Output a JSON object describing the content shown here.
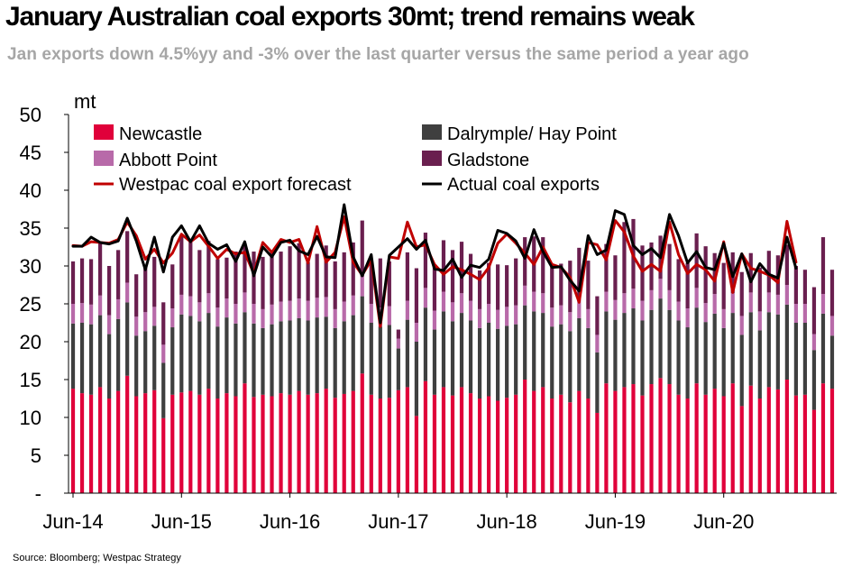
{
  "header": {
    "title": "January Australian coal exports 30mt; trend remains weak",
    "subtitle": "Jan exports down 4.5%yy and -3% over the last quarter versus the same period a year ago"
  },
  "footer": {
    "source": "Source: Bloomberg; Westpac Strategy"
  },
  "colors": {
    "newcastle": "#e0003a",
    "dalrymple": "#3f3f3f",
    "abbott": "#b86aa9",
    "gladstone": "#6a1f4f",
    "forecast": "#c00000",
    "actual": "#000000"
  },
  "chart_data": {
    "type": "bar",
    "stacked": true,
    "unit_label": "mt",
    "ylim": [
      0,
      50
    ],
    "y_ticks": [
      "-",
      "5",
      "10",
      "15",
      "20",
      "25",
      "30",
      "35",
      "40",
      "45",
      "50"
    ],
    "x_tick_labels": [
      "Jun-14",
      "Jun-15",
      "Jun-16",
      "Jun-17",
      "Jun-18",
      "Jun-19",
      "Jun-20"
    ],
    "x_tick_month_index": [
      0,
      12,
      24,
      36,
      48,
      60,
      72
    ],
    "legend": {
      "newcastle": "Newcastle",
      "dalrymple": "Dalrymple/ Hay Point",
      "abbott": "Abbott Point",
      "gladstone": "Gladstone",
      "forecast": "Westpac coal export forecast",
      "actual": "Actual coal exports"
    },
    "start_month": "Jun-14",
    "series": {
      "newcastle": [
        13.8,
        13.2,
        13.0,
        14.0,
        12.5,
        13.5,
        15.5,
        12.8,
        13.2,
        13.6,
        9.9,
        13.0,
        13.3,
        13.5,
        13.0,
        13.8,
        12.5,
        13.2,
        12.8,
        14.5,
        12.7,
        13.0,
        12.8,
        13.2,
        13.0,
        13.5,
        13.0,
        13.2,
        13.8,
        12.6,
        13.1,
        13.5,
        15.8,
        13.0,
        12.5,
        12.6,
        13.6,
        14.0,
        10.2,
        14.8,
        13.0,
        14.0,
        12.9,
        14.0,
        13.2,
        12.5,
        12.8,
        12.2,
        12.6,
        13.0,
        15.0,
        13.5,
        14.0,
        12.5,
        13.0,
        12.0,
        13.5,
        12.5,
        10.6,
        14.5,
        13.5,
        14.0,
        14.4,
        12.9,
        14.4,
        15.2,
        14.4,
        13.0,
        12.5,
        14.5,
        13.0,
        13.8,
        12.8,
        14.5,
        11.5,
        14.2,
        12.5,
        14.0,
        13.7,
        15.0,
        12.9,
        13.0,
        11.0,
        14.5,
        13.8
      ],
      "dalrymple": [
        8.6,
        9.3,
        9.3,
        9.5,
        8.5,
        9.5,
        9.7,
        8.0,
        8.2,
        8.5,
        7.3,
        8.9,
        10.3,
        9.9,
        9.7,
        10.0,
        9.5,
        10.0,
        9.6,
        9.4,
        9.7,
        8.8,
        9.5,
        9.5,
        9.8,
        9.6,
        9.8,
        10.0,
        9.5,
        9.2,
        9.6,
        10.0,
        10.2,
        9.5,
        9.5,
        9.6,
        5.5,
        8.9,
        9.8,
        9.7,
        8.6,
        10.0,
        9.8,
        9.8,
        9.6,
        9.3,
        9.7,
        9.5,
        9.5,
        9.3,
        9.8,
        10.5,
        9.8,
        9.5,
        9.3,
        9.4,
        9.6,
        9.3,
        8.0,
        9.5,
        9.4,
        9.8,
        10.0,
        9.9,
        9.8,
        10.5,
        9.8,
        9.8,
        9.4,
        10.0,
        9.6,
        9.9,
        9.0,
        9.3,
        9.4,
        9.7,
        9.0,
        9.9,
        9.9,
        9.9,
        9.6,
        9.5,
        7.9,
        9.2,
        7.0
      ],
      "abbott": [
        2.6,
        2.6,
        2.6,
        2.6,
        2.5,
        2.6,
        2.6,
        2.5,
        2.5,
        2.5,
        2.4,
        2.5,
        2.6,
        2.6,
        2.5,
        2.6,
        2.5,
        2.5,
        2.6,
        2.6,
        2.6,
        2.5,
        2.6,
        2.6,
        2.6,
        2.6,
        2.6,
        2.6,
        2.6,
        2.5,
        2.6,
        2.6,
        2.6,
        2.5,
        2.5,
        2.5,
        1.3,
        2.5,
        2.5,
        2.6,
        2.5,
        2.6,
        2.5,
        2.6,
        2.6,
        2.5,
        2.5,
        2.5,
        2.5,
        2.5,
        2.6,
        2.6,
        2.6,
        2.5,
        2.5,
        2.5,
        2.6,
        2.5,
        2.3,
        2.6,
        2.6,
        2.6,
        2.6,
        2.6,
        2.6,
        2.6,
        2.6,
        2.5,
        2.5,
        2.6,
        2.5,
        2.6,
        2.5,
        2.6,
        2.5,
        2.6,
        2.5,
        2.6,
        2.6,
        2.6,
        2.5,
        2.5,
        2.1,
        2.6,
        2.6
      ],
      "gladstone": [
        5.6,
        5.9,
        6.0,
        6.9,
        6.5,
        6.5,
        6.8,
        5.6,
        6.0,
        6.6,
        5.6,
        5.8,
        7.8,
        7.2,
        6.9,
        6.9,
        6.4,
        5.4,
        6.9,
        6.5,
        6.9,
        6.9,
        6.9,
        6.6,
        7.2,
        7.3,
        5.1,
        5.8,
        6.8,
        6.3,
        6.5,
        7.0,
        7.4,
        5.9,
        6.5,
        5.9,
        1.2,
        6.4,
        7.2,
        7.3,
        6.1,
        6.8,
        6.9,
        6.8,
        6.2,
        5.1,
        5.4,
        6.0,
        5.5,
        6.2,
        6.4,
        7.3,
        7.4,
        5.8,
        5.5,
        6.8,
        6.7,
        6.4,
        5.1,
        6.3,
        5.9,
        9.4,
        9.2,
        7.3,
        6.3,
        5.7,
        6.1,
        5.6,
        6.0,
        7.2,
        7.5,
        5.4,
        6.1,
        5.4,
        5.8,
        5.2,
        5.8,
        5.5,
        5.2,
        5.3,
        5.0,
        4.5,
        6.2,
        7.5,
        6.1
      ],
      "forecast": [
        32.7,
        32.6,
        33.2,
        33.1,
        33.0,
        33.5,
        35.8,
        34.0,
        30.9,
        32.2,
        30.4,
        31.7,
        34.2,
        33.2,
        34.1,
        32.6,
        31.0,
        32.2,
        31.6,
        31.8,
        29.0,
        33.1,
        31.8,
        33.5,
        33.1,
        33.5,
        30.4,
        35.2,
        30.5,
        31.8,
        36.5,
        30.5,
        28.8,
        30.8,
        22.0,
        31.2,
        31.0,
        35.8,
        32.5,
        32.8,
        30.2,
        28.9,
        29.9,
        29.5,
        28.9,
        28.2,
        29.8,
        33.0,
        34.2,
        33.0,
        31.7,
        30.2,
        32.5,
        30.2,
        29.8,
        28.5,
        25.2,
        33.1,
        32.8,
        30.8,
        36.0,
        34.5,
        31.3,
        29.3,
        30.2,
        29.3,
        35.8,
        31.5,
        29.0,
        30.2,
        29.5,
        28.0,
        33.2,
        26.5,
        31.6,
        29.7,
        29.3,
        28.8,
        27.8,
        35.9,
        30.5
      ],
      "actual": [
        32.6,
        32.6,
        33.8,
        33.1,
        32.9,
        33.3,
        36.3,
        33.3,
        29.5,
        33.8,
        29.2,
        33.8,
        35.3,
        33.2,
        35.3,
        33.0,
        32.2,
        32.8,
        30.6,
        33.2,
        28.7,
        32.5,
        31.2,
        33.1,
        33.4,
        32.0,
        31.5,
        33.9,
        31.2,
        31.1,
        38.1,
        31.2,
        28.7,
        31.5,
        22.5,
        31.4,
        32.5,
        33.6,
        32.2,
        33.4,
        29.6,
        29.4,
        30.9,
        28.5,
        30.1,
        29.8,
        30.9,
        34.7,
        34.3,
        33.3,
        31.0,
        34.8,
        31.9,
        29.8,
        29.9,
        28.1,
        26.7,
        34.0,
        31.5,
        32.1,
        37.3,
        36.8,
        32.7,
        31.5,
        32.3,
        31.1,
        36.8,
        34.0,
        30.4,
        31.9,
        29.8,
        29.5,
        33.0,
        28.6,
        31.6,
        27.9,
        30.3,
        28.9,
        28.4,
        33.8,
        29.7
      ]
    }
  }
}
